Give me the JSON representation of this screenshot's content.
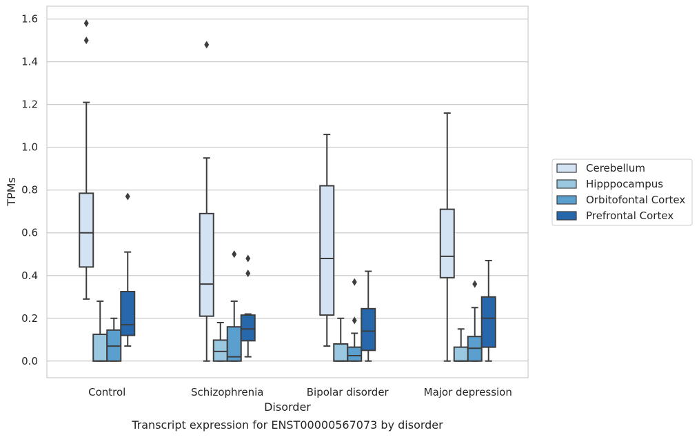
{
  "caption": "Transcript expression for ENST00000567073 by disorder",
  "chart_data": {
    "type": "box",
    "xlabel": "Disorder",
    "ylabel": "TPMs",
    "ylim": [
      -0.078,
      1.66
    ],
    "yticks": [
      0.0,
      0.2,
      0.4,
      0.6,
      0.8,
      1.0,
      1.2,
      1.4,
      1.6
    ],
    "ytick_labels": [
      "0.0",
      "0.2",
      "0.4",
      "0.6",
      "0.8",
      "1.0",
      "1.2",
      "1.4",
      "1.6"
    ],
    "grid": "horizontal",
    "legend_position": "right",
    "categories": [
      "Control",
      "Schizophrenia",
      "Bipolar disorder",
      "Major depression"
    ],
    "series": [
      {
        "name": "Cerebellum",
        "color": "#d3e3f3",
        "boxes": [
          {
            "whislo": 0.29,
            "q1": 0.44,
            "med": 0.6,
            "q3": 0.785,
            "whishi": 1.21,
            "fliers": [
              1.5,
              1.58
            ]
          },
          {
            "whislo": 0.0,
            "q1": 0.21,
            "med": 0.36,
            "q3": 0.69,
            "whishi": 0.95,
            "fliers": [
              1.48
            ]
          },
          {
            "whislo": 0.07,
            "q1": 0.215,
            "med": 0.48,
            "q3": 0.82,
            "whishi": 1.06,
            "fliers": []
          },
          {
            "whislo": 0.0,
            "q1": 0.39,
            "med": 0.49,
            "q3": 0.71,
            "whishi": 1.16,
            "fliers": []
          }
        ]
      },
      {
        "name": "Hipppocampus",
        "color": "#9ac8e0",
        "boxes": [
          {
            "whislo": 0.0,
            "q1": 0.0,
            "med": 0.0,
            "q3": 0.125,
            "whishi": 0.28,
            "fliers": []
          },
          {
            "whislo": 0.0,
            "q1": 0.0,
            "med": 0.045,
            "q3": 0.098,
            "whishi": 0.18,
            "fliers": []
          },
          {
            "whislo": 0.0,
            "q1": 0.0,
            "med": 0.0,
            "q3": 0.08,
            "whishi": 0.2,
            "fliers": []
          },
          {
            "whislo": 0.0,
            "q1": 0.0,
            "med": 0.0,
            "q3": 0.065,
            "whishi": 0.15,
            "fliers": []
          }
        ]
      },
      {
        "name": "Orbitofontal Cortex",
        "color": "#5a9fcd",
        "boxes": [
          {
            "whislo": 0.0,
            "q1": 0.0,
            "med": 0.07,
            "q3": 0.145,
            "whishi": 0.2,
            "fliers": []
          },
          {
            "whislo": 0.0,
            "q1": 0.0,
            "med": 0.02,
            "q3": 0.16,
            "whishi": 0.28,
            "fliers": [
              0.5
            ]
          },
          {
            "whislo": 0.0,
            "q1": 0.0,
            "med": 0.025,
            "q3": 0.065,
            "whishi": 0.13,
            "fliers": [
              0.19,
              0.37
            ]
          },
          {
            "whislo": 0.0,
            "q1": 0.0,
            "med": 0.06,
            "q3": 0.115,
            "whishi": 0.25,
            "fliers": [
              0.36
            ]
          }
        ]
      },
      {
        "name": "Prefrontal Cortex",
        "color": "#2768ad",
        "boxes": [
          {
            "whislo": 0.07,
            "q1": 0.12,
            "med": 0.17,
            "q3": 0.325,
            "whishi": 0.51,
            "fliers": [
              0.77
            ]
          },
          {
            "whislo": 0.02,
            "q1": 0.095,
            "med": 0.15,
            "q3": 0.215,
            "whishi": 0.22,
            "fliers": [
              0.41,
              0.48
            ]
          },
          {
            "whislo": 0.0,
            "q1": 0.05,
            "med": 0.14,
            "q3": 0.245,
            "whishi": 0.42,
            "fliers": []
          },
          {
            "whislo": 0.0,
            "q1": 0.065,
            "med": 0.2,
            "q3": 0.3,
            "whishi": 0.47,
            "fliers": []
          }
        ]
      }
    ]
  }
}
